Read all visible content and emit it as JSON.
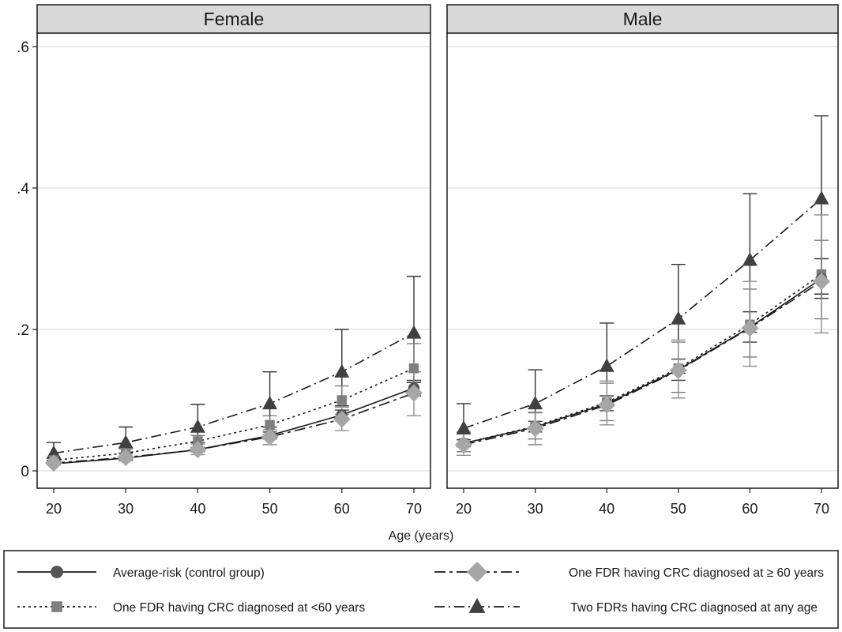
{
  "chart_data": {
    "type": "line",
    "xlabel": "Age (years)",
    "ylabel": "",
    "ylim": [
      0,
      0.6
    ],
    "y_ticks": [
      0,
      0.2,
      0.4,
      0.6
    ],
    "y_tick_labels": [
      "0",
      ".2",
      ".4",
      ".6"
    ],
    "x_ticks": [
      20,
      30,
      40,
      50,
      60,
      70
    ],
    "grid": "horizontal",
    "legend_position": "bottom",
    "legend": [
      {
        "label": "Average-risk (control group)",
        "marker": "circle",
        "dash": "solid",
        "color": "#555555"
      },
      {
        "label": "One FDR having CRC diagnosed at ≥ 60 years",
        "marker": "diamond",
        "dash": "longdash",
        "color": "#a6a6a6"
      },
      {
        "label": "One FDR having CRC diagnosed at <60 years",
        "marker": "square",
        "dash": "dot",
        "color": "#7f7f7f"
      },
      {
        "label": "Two FDRs having CRC diagnosed at any age",
        "marker": "triangle",
        "dash": "dashdot",
        "color": "#404040"
      }
    ],
    "panels": [
      {
        "title": "Female",
        "x": [
          20,
          30,
          40,
          50,
          60,
          70
        ],
        "series": [
          {
            "name": "Average-risk (control group)",
            "values": [
              0.01,
              0.018,
              0.03,
              0.05,
              0.079,
              0.117
            ],
            "lower": [
              0.009,
              0.016,
              0.027,
              0.045,
              0.072,
              0.106
            ],
            "upper": [
              0.011,
              0.02,
              0.033,
              0.055,
              0.086,
              0.128
            ]
          },
          {
            "name": "One FDR having CRC diagnosed at ≥ 60 years",
            "values": [
              0.011,
              0.019,
              0.03,
              0.048,
              0.073,
              0.11
            ],
            "lower": [
              0.008,
              0.014,
              0.023,
              0.037,
              0.057,
              0.078
            ],
            "upper": [
              0.014,
              0.024,
              0.038,
              0.058,
              0.09,
              0.14
            ]
          },
          {
            "name": "One FDR having CRC diagnosed at <60 years",
            "values": [
              0.015,
              0.025,
              0.042,
              0.065,
              0.1,
              0.145
            ],
            "lower": [
              0.012,
              0.02,
              0.033,
              0.051,
              0.08,
              0.112
            ],
            "upper": [
              0.018,
              0.031,
              0.05,
              0.078,
              0.12,
              0.18
            ]
          },
          {
            "name": "Two FDRs having CRC diagnosed at any age",
            "values": [
              0.025,
              0.04,
              0.062,
              0.095,
              0.14,
              0.195
            ],
            "lower": [
              0.015,
              0.025,
              0.04,
              0.062,
              0.092,
              0.125
            ],
            "upper": [
              0.04,
              0.062,
              0.094,
              0.14,
              0.2,
              0.275
            ]
          }
        ]
      },
      {
        "title": "Male",
        "x": [
          20,
          30,
          40,
          50,
          60,
          70
        ],
        "series": [
          {
            "name": "Average-risk (control group)",
            "values": [
              0.039,
              0.062,
              0.095,
              0.143,
              0.203,
              0.272
            ],
            "lower": [
              0.034,
              0.055,
              0.085,
              0.128,
              0.182,
              0.244
            ],
            "upper": [
              0.044,
              0.07,
              0.106,
              0.158,
              0.225,
              0.3
            ]
          },
          {
            "name": "One FDR having CRC diagnosed at ≥ 60 years",
            "values": [
              0.037,
              0.06,
              0.093,
              0.142,
              0.202,
              0.268
            ],
            "lower": [
              0.022,
              0.037,
              0.065,
              0.103,
              0.148,
              0.195
            ],
            "upper": [
              0.055,
              0.083,
              0.127,
              0.185,
              0.268,
              0.362
            ]
          },
          {
            "name": "One FDR having CRC diagnosed at <60 years",
            "values": [
              0.039,
              0.063,
              0.097,
              0.145,
              0.207,
              0.278
            ],
            "lower": [
              0.027,
              0.045,
              0.071,
              0.111,
              0.161,
              0.215
            ],
            "upper": [
              0.052,
              0.082,
              0.124,
              0.182,
              0.257,
              0.326
            ]
          },
          {
            "name": "Two FDRs having CRC diagnosed at any age",
            "values": [
              0.06,
              0.095,
              0.148,
              0.215,
              0.298,
              0.385
            ],
            "lower": [
              0.035,
              0.058,
              0.093,
              0.138,
              0.196,
              0.25
            ],
            "upper": [
              0.095,
              0.143,
              0.209,
              0.292,
              0.392,
              0.502
            ]
          }
        ]
      }
    ]
  }
}
